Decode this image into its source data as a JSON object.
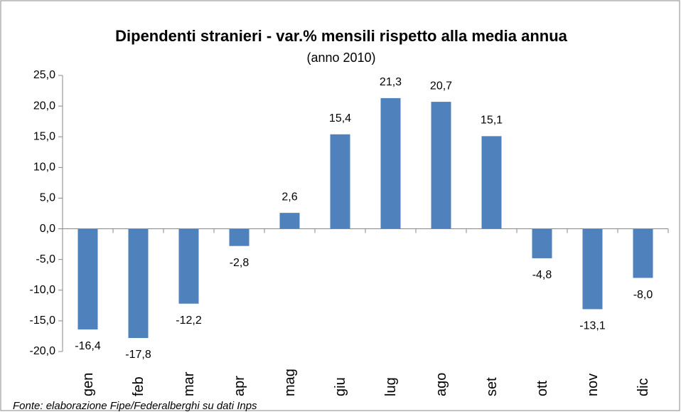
{
  "chart_data": {
    "type": "bar",
    "title": "Dipendenti stranieri - var.% mensili rispetto alla media annua",
    "subtitle": "(anno 2010)",
    "categories": [
      "gen",
      "feb",
      "mar",
      "apr",
      "mag",
      "giu",
      "lug",
      "ago",
      "set",
      "ott",
      "nov",
      "dic"
    ],
    "values": [
      -16.4,
      -17.8,
      -12.2,
      -2.8,
      2.6,
      15.4,
      21.3,
      20.7,
      15.1,
      -4.8,
      -13.1,
      -8.0
    ],
    "value_labels": [
      "-16,4",
      "-17,8",
      "-12,2",
      "-2,8",
      "2,6",
      "15,4",
      "21,3",
      "20,7",
      "15,1",
      "-4,8",
      "-13,1",
      "-8,0"
    ],
    "color": "#4f81bd",
    "ylim": [
      -20,
      25
    ],
    "yticks": [
      {
        "value": -20,
        "label": "-20,0"
      },
      {
        "value": -15,
        "label": "-15,0"
      },
      {
        "value": -10,
        "label": "-10,0"
      },
      {
        "value": -5,
        "label": "-5,0"
      },
      {
        "value": 0,
        "label": "0,0"
      },
      {
        "value": 5,
        "label": "5,0"
      },
      {
        "value": 10,
        "label": "10,0"
      },
      {
        "value": 15,
        "label": "15,0"
      },
      {
        "value": 20,
        "label": "20,0"
      },
      {
        "value": 25,
        "label": "25,0"
      }
    ],
    "grid": false,
    "source": "Fonte: elaborazione Fipe/Federalberghi su dati Inps"
  }
}
